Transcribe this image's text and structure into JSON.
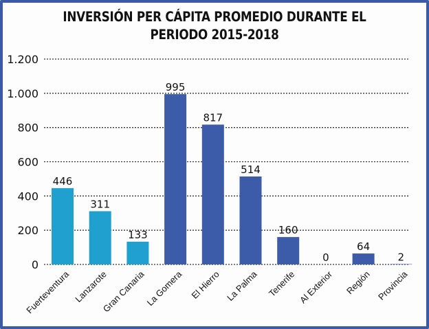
{
  "chart_data": {
    "type": "bar",
    "title": "INVERSIÓN PER CÁPITA PROMEDIO DURANTE EL PERIODO 2015-2018",
    "title_lines": [
      "INVERSIÓN PER CÁPITA PROMEDIO DURANTE EL",
      "PERIODO 2015-2018"
    ],
    "xlabel": "",
    "ylabel": "",
    "categories": [
      "Fuerteventura",
      "Lanzarote",
      "Gran Canaria",
      "La Gomera",
      "El Hierro",
      "La Palma",
      "Tenerife",
      "Al Exterior",
      "Región",
      "Provincia"
    ],
    "values": [
      446,
      311,
      133,
      995,
      817,
      514,
      160,
      0,
      64,
      2
    ],
    "data_labels": [
      "446",
      "311",
      "133",
      "995",
      "817",
      "514",
      "160",
      "0",
      "64",
      "2"
    ],
    "bar_colors": [
      "#1fa0cf",
      "#1fa0cf",
      "#1fa0cf",
      "#3c5ba8",
      "#3c5ba8",
      "#3c5ba8",
      "#3c5ba8",
      "#3c5ba8",
      "#3c5ba8",
      "#3c5ba8"
    ],
    "ylim": [
      0,
      1200
    ],
    "yticks": [
      0,
      200,
      400,
      600,
      800,
      1000,
      1200
    ],
    "ytick_labels": [
      "0",
      "200",
      "400",
      "600",
      "800",
      "1.000",
      "1.200"
    ],
    "grid": true,
    "grid_style": "dotted-horizontal",
    "legend": "none",
    "frame_color": "#3a5aa6"
  }
}
